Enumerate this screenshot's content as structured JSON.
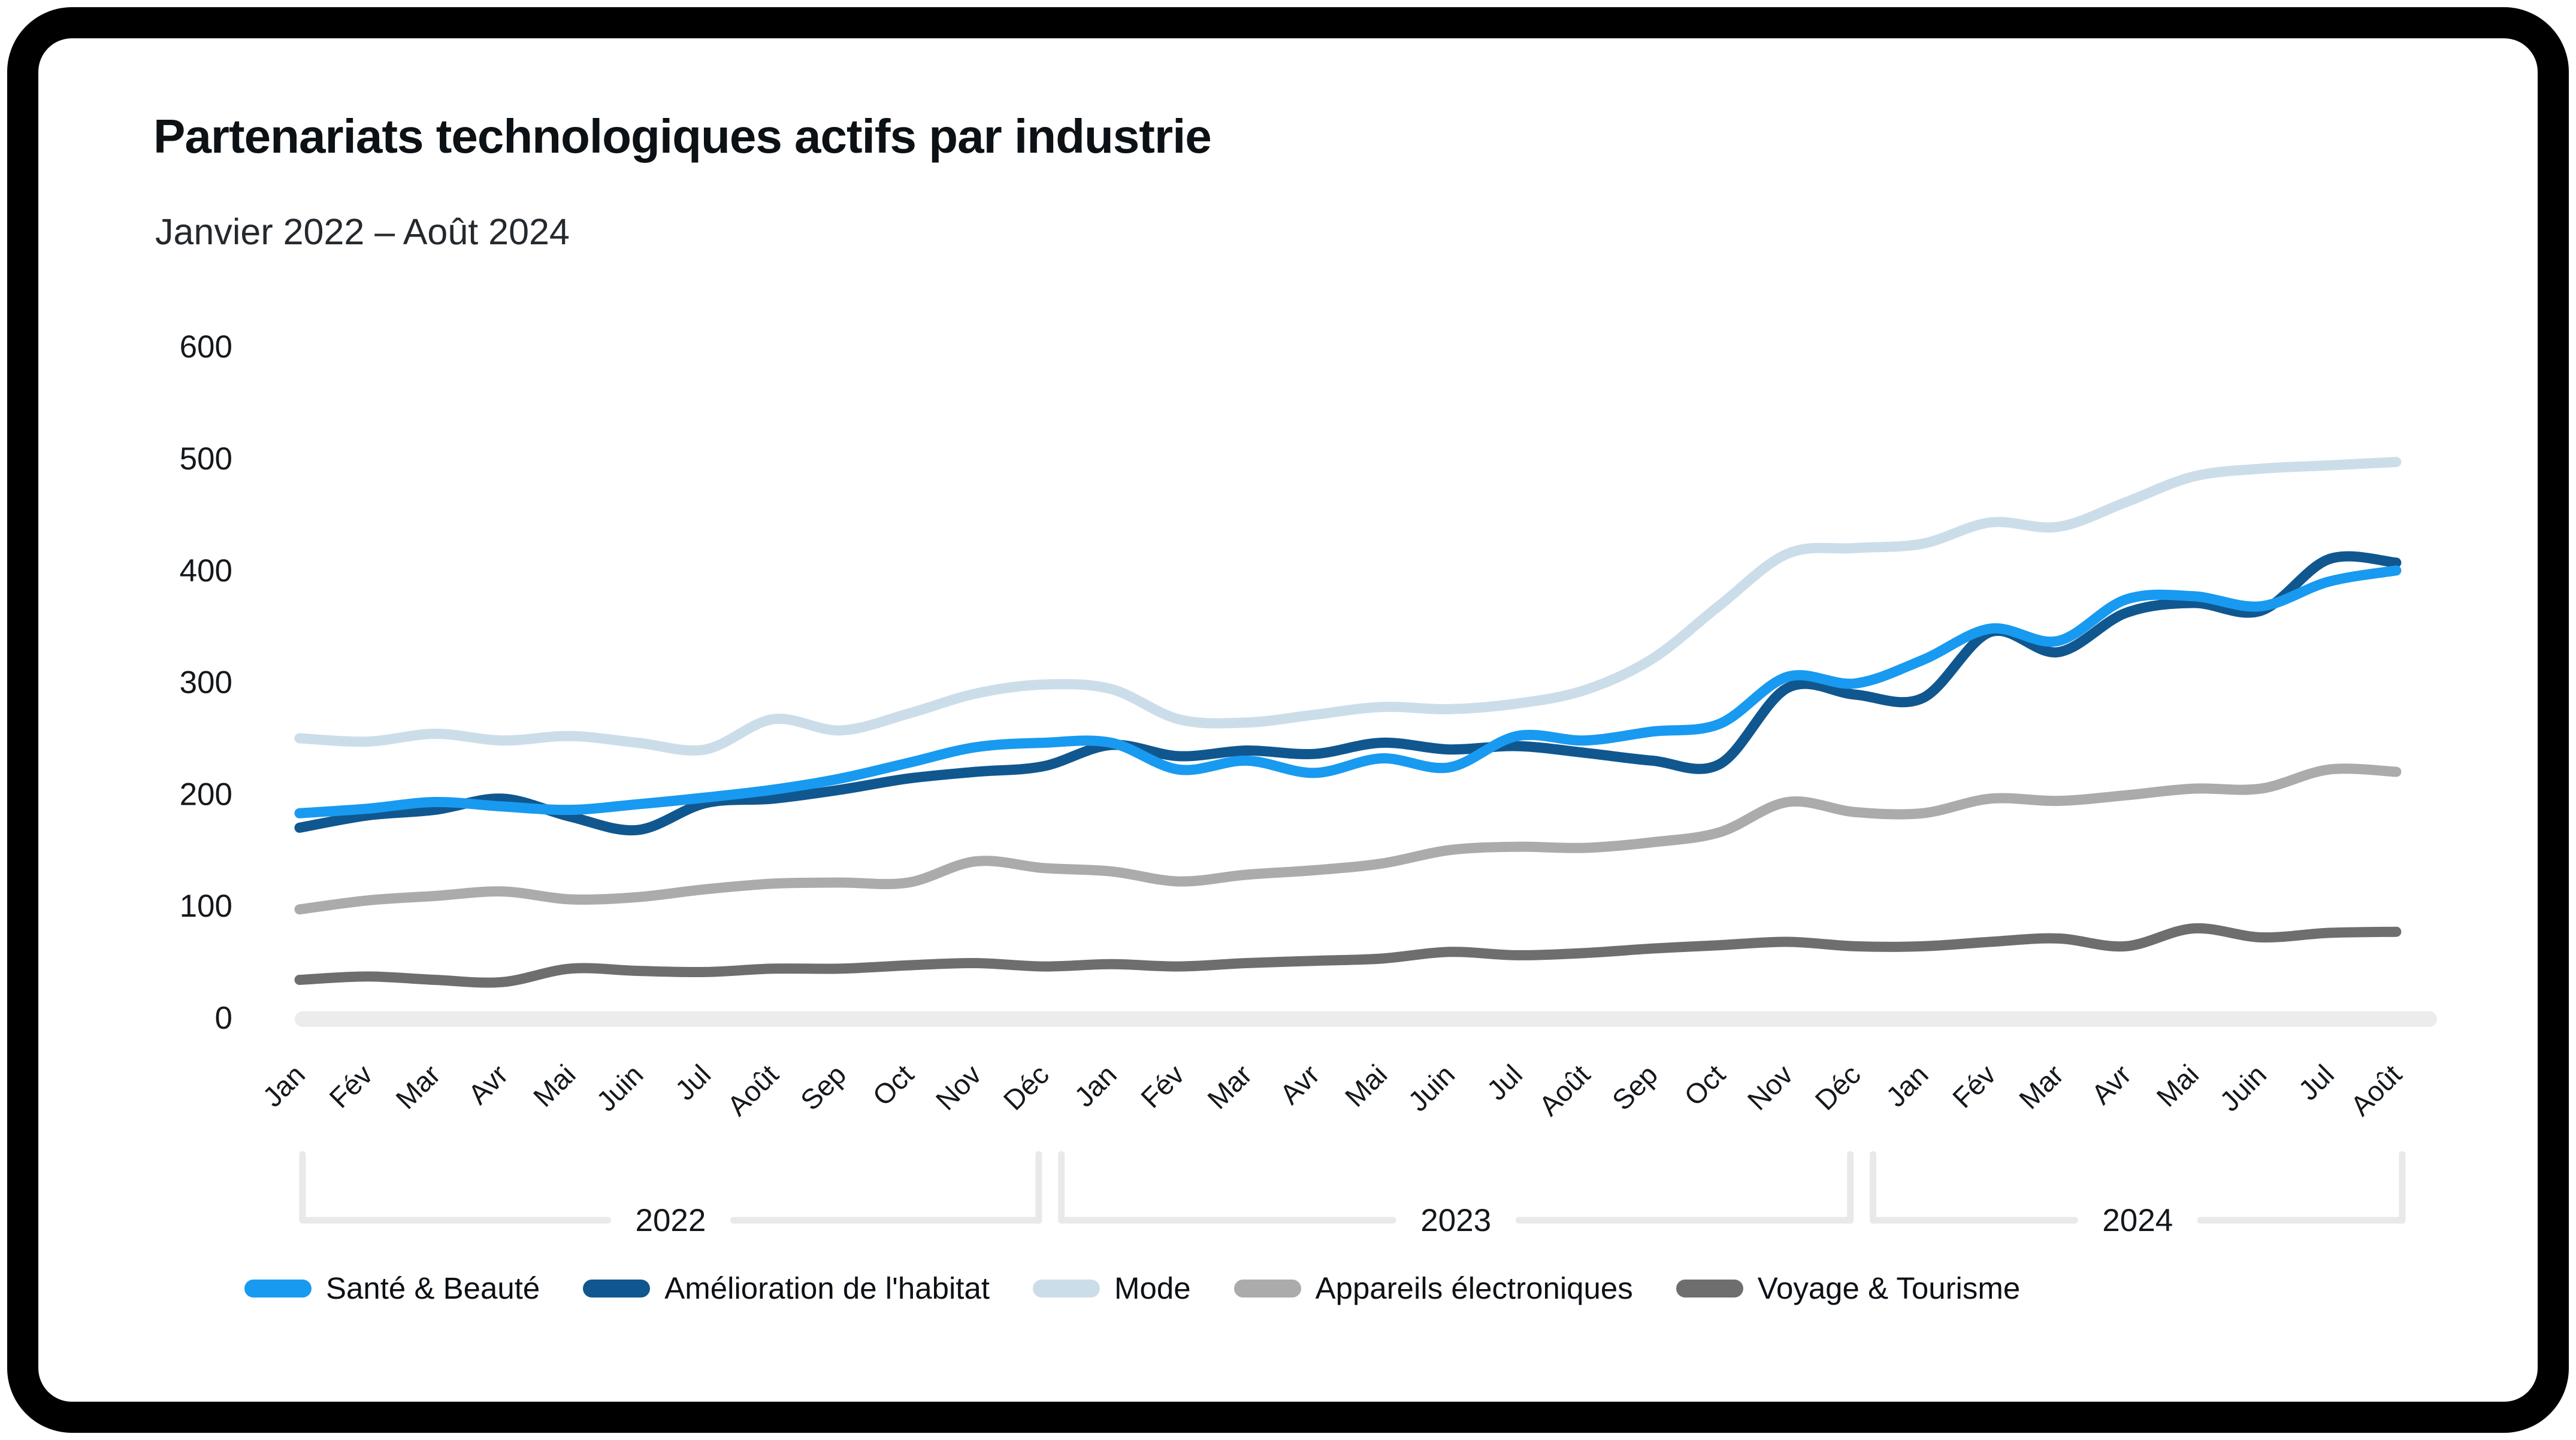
{
  "chart_data": {
    "type": "line",
    "title": "Partenariats technologiques actifs par industrie",
    "subtitle": "Janvier 2022 – Août 2024",
    "categories": [
      "Jan",
      "Fév",
      "Mar",
      "Avr",
      "Mai",
      "Juin",
      "Jul",
      "Août",
      "Sep",
      "Oct",
      "Nov",
      "Déc",
      "Jan",
      "Fév",
      "Mar",
      "Avr",
      "Mai",
      "Juin",
      "Jul",
      "Août",
      "Sep",
      "Oct",
      "Nov",
      "Déc",
      "Jan",
      "Fév",
      "Mar",
      "Avr",
      "Mai",
      "Juin",
      "Jul",
      "Août"
    ],
    "year_groups": [
      {
        "label": "2022",
        "start_index": 0,
        "end_index": 11
      },
      {
        "label": "2023",
        "start_index": 12,
        "end_index": 23
      },
      {
        "label": "2024",
        "start_index": 24,
        "end_index": 31
      }
    ],
    "yticks": [
      0,
      100,
      200,
      300,
      400,
      500,
      600
    ],
    "ylim": [
      0,
      600
    ],
    "grid": "off",
    "legend_position": "bottom",
    "series": [
      {
        "name": "Santé & Beauté",
        "color": "#189AF0",
        "values": [
          183,
          187,
          193,
          189,
          186,
          191,
          197,
          204,
          214,
          228,
          242,
          246,
          246,
          222,
          230,
          219,
          232,
          224,
          252,
          248,
          256,
          263,
          305,
          299,
          320,
          348,
          337,
          374,
          377,
          368,
          390,
          400
        ]
      },
      {
        "name": "Amélioration de l'habitat",
        "color": "#10578F",
        "values": [
          170,
          181,
          186,
          196,
          180,
          168,
          192,
          196,
          204,
          214,
          220,
          225,
          244,
          234,
          239,
          236,
          246,
          240,
          243,
          237,
          230,
          227,
          295,
          289,
          286,
          345,
          327,
          362,
          371,
          364,
          410,
          407
        ]
      },
      {
        "name": "Mode",
        "color": "#CCDDEA",
        "values": [
          250,
          247,
          254,
          248,
          252,
          246,
          240,
          267,
          257,
          272,
          290,
          298,
          294,
          267,
          264,
          271,
          278,
          276,
          281,
          293,
          321,
          369,
          415,
          420,
          424,
          443,
          439,
          461,
          484,
          491,
          494,
          497
        ]
      },
      {
        "name": "Appareils électroniques",
        "color": "#ABABAB",
        "values": [
          97,
          105,
          109,
          113,
          106,
          108,
          115,
          120,
          121,
          121,
          140,
          134,
          131,
          122,
          128,
          132,
          138,
          150,
          153,
          152,
          157,
          166,
          193,
          184,
          183,
          196,
          194,
          199,
          205,
          205,
          222,
          220
        ]
      },
      {
        "name": "Voyage & Tourisme",
        "color": "#6E6E6E",
        "values": [
          34,
          37,
          34,
          32,
          44,
          42,
          41,
          44,
          44,
          47,
          49,
          46,
          48,
          46,
          49,
          51,
          53,
          59,
          56,
          58,
          62,
          65,
          68,
          64,
          64,
          68,
          71,
          64,
          80,
          72,
          76,
          77
        ]
      }
    ],
    "colors": {
      "frame": "#000000",
      "title_text": "#0c1116",
      "axis_text": "#14181c",
      "axis_baseline": "#ECECEC",
      "year_bracket": "#E9E9E9",
      "background": "#FFFFFF"
    }
  }
}
